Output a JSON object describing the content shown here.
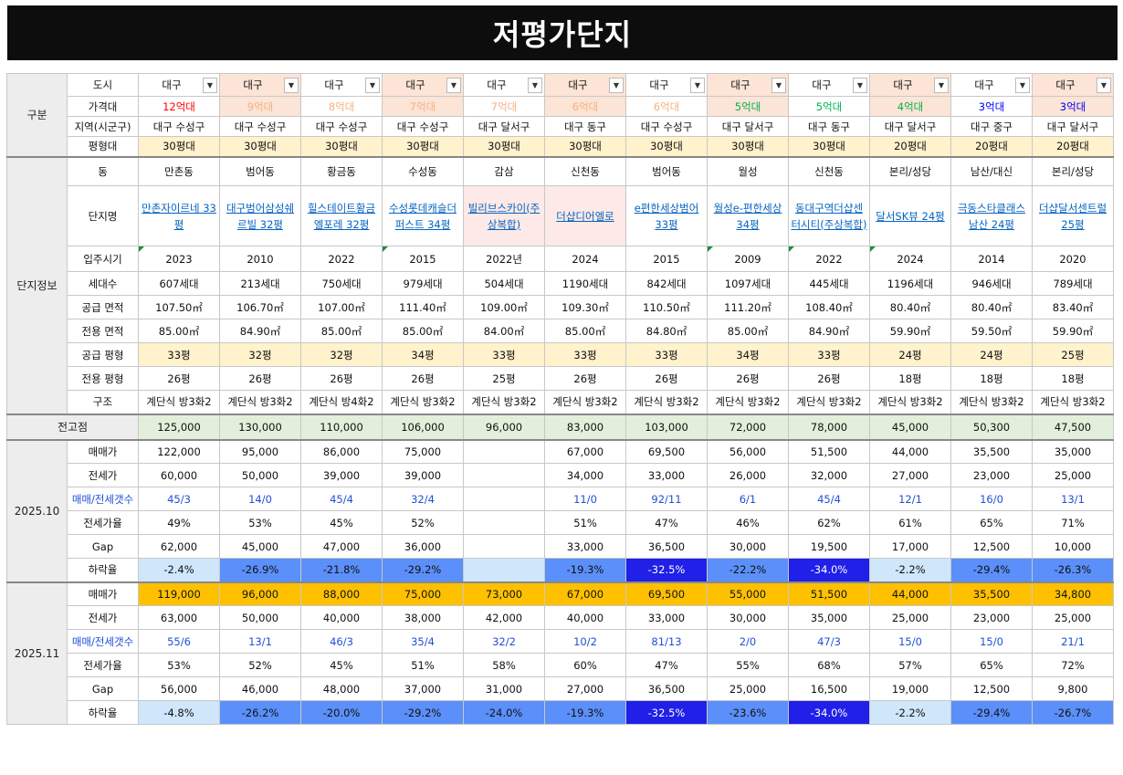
{
  "title": "저평가단지",
  "sections": {
    "gubun": "구분",
    "danji": "단지정보",
    "jeongojeom": "전고점",
    "oct": "2025.10",
    "nov": "2025.11"
  },
  "labels": {
    "city": "도시",
    "price_band": "가격대",
    "region": "지역(시군구)",
    "size_band": "평형대",
    "dong": "동",
    "name": "단지명",
    "year": "입주시기",
    "households": "세대수",
    "supply_area": "공급 면적",
    "exclusive_area": "전용 면적",
    "supply_pyeong": "공급 평형",
    "exclusive_pyeong": "전용 평형",
    "structure": "구조",
    "sale": "매매가",
    "jeonse": "전세가",
    "counts": "매매/전세갯수",
    "jeonse_ratio": "전세가율",
    "gap": "Gap",
    "drop": "하락율"
  },
  "columns": [
    {
      "city": "대구",
      "price_band": "12억대",
      "region": "대구 수성구",
      "size_band": "30평대",
      "dong": "만촌동",
      "name": "만촌자이르네 33평",
      "year": "2023",
      "households": "607세대",
      "supply_area": "107.50㎡",
      "exclusive_area": "85.00㎡",
      "supply_pyeong": "33평",
      "exclusive_pyeong": "26평",
      "structure": "계단식 방3화2",
      "peak": "125,000",
      "oct": {
        "sale": "122,000",
        "jeonse": "60,000",
        "counts": "45/3",
        "ratio": "49%",
        "gap": "62,000",
        "drop": "-2.4%"
      },
      "nov": {
        "sale": "119,000",
        "jeonse": "63,000",
        "counts": "55/6",
        "ratio": "53%",
        "gap": "56,000",
        "drop": "-4.8%"
      }
    },
    {
      "city": "대구",
      "price_band": "9억대",
      "region": "대구 수성구",
      "size_band": "30평대",
      "dong": "범어동",
      "name": "대구범어삼성쉐르빌 32평",
      "year": "2010",
      "households": "213세대",
      "supply_area": "106.70㎡",
      "exclusive_area": "84.90㎡",
      "supply_pyeong": "32평",
      "exclusive_pyeong": "26평",
      "structure": "계단식 방3화2",
      "peak": "130,000",
      "oct": {
        "sale": "95,000",
        "jeonse": "50,000",
        "counts": "14/0",
        "ratio": "53%",
        "gap": "45,000",
        "drop": "-26.9%"
      },
      "nov": {
        "sale": "96,000",
        "jeonse": "50,000",
        "counts": "13/1",
        "ratio": "52%",
        "gap": "46,000",
        "drop": "-26.2%"
      }
    },
    {
      "city": "대구",
      "price_band": "8억대",
      "region": "대구 수성구",
      "size_band": "30평대",
      "dong": "황금동",
      "name": "힐스테이트황금엘포레 32평",
      "year": "2022",
      "households": "750세대",
      "supply_area": "107.00㎡",
      "exclusive_area": "85.00㎡",
      "supply_pyeong": "32평",
      "exclusive_pyeong": "26평",
      "structure": "계단식 방4화2",
      "peak": "110,000",
      "oct": {
        "sale": "86,000",
        "jeonse": "39,000",
        "counts": "45/4",
        "ratio": "45%",
        "gap": "47,000",
        "drop": "-21.8%"
      },
      "nov": {
        "sale": "88,000",
        "jeonse": "40,000",
        "counts": "46/3",
        "ratio": "45%",
        "gap": "48,000",
        "drop": "-20.0%"
      }
    },
    {
      "city": "대구",
      "price_band": "7억대",
      "region": "대구 수성구",
      "size_band": "30평대",
      "dong": "수성동",
      "name": "수성롯데캐슬더퍼스트 34평",
      "year": "2015",
      "households": "979세대",
      "supply_area": "111.40㎡",
      "exclusive_area": "85.00㎡",
      "supply_pyeong": "34평",
      "exclusive_pyeong": "26평",
      "structure": "계단식 방3화2",
      "peak": "106,000",
      "oct": {
        "sale": "75,000",
        "jeonse": "39,000",
        "counts": "32/4",
        "ratio": "52%",
        "gap": "36,000",
        "drop": "-29.2%"
      },
      "nov": {
        "sale": "75,000",
        "jeonse": "38,000",
        "counts": "35/4",
        "ratio": "51%",
        "gap": "37,000",
        "drop": "-29.2%"
      }
    },
    {
      "city": "대구",
      "price_band": "7억대",
      "region": "대구 달서구",
      "size_band": "30평대",
      "dong": "감삼",
      "name": "빌리브스카이(주상복합)",
      "year": "2022년",
      "households": "504세대",
      "supply_area": "109.00㎡",
      "exclusive_area": "84.00㎡",
      "supply_pyeong": "33평",
      "exclusive_pyeong": "25평",
      "structure": "계단식 방3화2",
      "peak": "96,000",
      "oct": {
        "sale": "",
        "jeonse": "",
        "counts": "",
        "ratio": "",
        "gap": "",
        "drop": ""
      },
      "nov": {
        "sale": "73,000",
        "jeonse": "42,000",
        "counts": "32/2",
        "ratio": "58%",
        "gap": "31,000",
        "drop": "-24.0%"
      }
    },
    {
      "city": "대구",
      "price_band": "6억대",
      "region": "대구 동구",
      "size_band": "30평대",
      "dong": "신천동",
      "name": "더샵디어엘로",
      "year": "2024",
      "households": "1190세대",
      "supply_area": "109.30㎡",
      "exclusive_area": "85.00㎡",
      "supply_pyeong": "33평",
      "exclusive_pyeong": "26평",
      "structure": "계단식 방3화2",
      "peak": "83,000",
      "oct": {
        "sale": "67,000",
        "jeonse": "34,000",
        "counts": "11/0",
        "ratio": "51%",
        "gap": "33,000",
        "drop": "-19.3%"
      },
      "nov": {
        "sale": "67,000",
        "jeonse": "40,000",
        "counts": "10/2",
        "ratio": "60%",
        "gap": "27,000",
        "drop": "-19.3%"
      }
    },
    {
      "city": "대구",
      "price_band": "6억대",
      "region": "대구 수성구",
      "size_band": "30평대",
      "dong": "범어동",
      "name": "e편한세상범어 33평",
      "year": "2015",
      "households": "842세대",
      "supply_area": "110.50㎡",
      "exclusive_area": "84.80㎡",
      "supply_pyeong": "33평",
      "exclusive_pyeong": "26평",
      "structure": "계단식 방3화2",
      "peak": "103,000",
      "oct": {
        "sale": "69,500",
        "jeonse": "33,000",
        "counts": "92/11",
        "ratio": "47%",
        "gap": "36,500",
        "drop": "-32.5%"
      },
      "nov": {
        "sale": "69,500",
        "jeonse": "33,000",
        "counts": "81/13",
        "ratio": "47%",
        "gap": "36,500",
        "drop": "-32.5%"
      }
    },
    {
      "city": "대구",
      "price_band": "5억대",
      "region": "대구 달서구",
      "size_band": "30평대",
      "dong": "월성",
      "name": "월성e-편한세상 34평",
      "year": "2009",
      "households": "1097세대",
      "supply_area": "111.20㎡",
      "exclusive_area": "85.00㎡",
      "supply_pyeong": "34평",
      "exclusive_pyeong": "26평",
      "structure": "계단식 방3화2",
      "peak": "72,000",
      "oct": {
        "sale": "56,000",
        "jeonse": "26,000",
        "counts": "6/1",
        "ratio": "46%",
        "gap": "30,000",
        "drop": "-22.2%"
      },
      "nov": {
        "sale": "55,000",
        "jeonse": "30,000",
        "counts": "2/0",
        "ratio": "55%",
        "gap": "25,000",
        "drop": "-23.6%"
      }
    },
    {
      "city": "대구",
      "price_band": "5억대",
      "region": "대구 동구",
      "size_band": "30평대",
      "dong": "신천동",
      "name": "동대구역더샵센터시티(주상복합)",
      "year": "2022",
      "households": "445세대",
      "supply_area": "108.40㎡",
      "exclusive_area": "84.90㎡",
      "supply_pyeong": "33평",
      "exclusive_pyeong": "26평",
      "structure": "계단식 방3화2",
      "peak": "78,000",
      "oct": {
        "sale": "51,500",
        "jeonse": "32,000",
        "counts": "45/4",
        "ratio": "62%",
        "gap": "19,500",
        "drop": "-34.0%"
      },
      "nov": {
        "sale": "51,500",
        "jeonse": "35,000",
        "counts": "47/3",
        "ratio": "68%",
        "gap": "16,500",
        "drop": "-34.0%"
      }
    },
    {
      "city": "대구",
      "price_band": "4억대",
      "region": "대구 달서구",
      "size_band": "20평대",
      "dong": "본리/성당",
      "name": "달서SK뷰 24평",
      "year": "2024",
      "households": "1196세대",
      "supply_area": "80.40㎡",
      "exclusive_area": "59.90㎡",
      "supply_pyeong": "24평",
      "exclusive_pyeong": "18평",
      "structure": "계단식 방3화2",
      "peak": "45,000",
      "oct": {
        "sale": "44,000",
        "jeonse": "27,000",
        "counts": "12/1",
        "ratio": "61%",
        "gap": "17,000",
        "drop": "-2.2%"
      },
      "nov": {
        "sale": "44,000",
        "jeonse": "25,000",
        "counts": "15/0",
        "ratio": "57%",
        "gap": "19,000",
        "drop": "-2.2%"
      }
    },
    {
      "city": "대구",
      "price_band": "3억대",
      "region": "대구 중구",
      "size_band": "20평대",
      "dong": "남산/대신",
      "name": "극동스타클래스남산 24평",
      "year": "2014",
      "households": "946세대",
      "supply_area": "80.40㎡",
      "exclusive_area": "59.50㎡",
      "supply_pyeong": "24평",
      "exclusive_pyeong": "18평",
      "structure": "계단식 방3화2",
      "peak": "50,300",
      "oct": {
        "sale": "35,500",
        "jeonse": "23,000",
        "counts": "16/0",
        "ratio": "65%",
        "gap": "12,500",
        "drop": "-29.4%"
      },
      "nov": {
        "sale": "35,500",
        "jeonse": "23,000",
        "counts": "15/0",
        "ratio": "65%",
        "gap": "12,500",
        "drop": "-29.4%"
      }
    },
    {
      "city": "대구",
      "price_band": "3억대",
      "region": "대구 달서구",
      "size_band": "20평대",
      "dong": "본리/성당",
      "name": "더샵달서센트럴 25평",
      "year": "2020",
      "households": "789세대",
      "supply_area": "83.40㎡",
      "exclusive_area": "59.90㎡",
      "supply_pyeong": "25평",
      "exclusive_pyeong": "18평",
      "structure": "계단식 방3화2",
      "peak": "47,500",
      "oct": {
        "sale": "35,000",
        "jeonse": "25,000",
        "counts": "13/1",
        "ratio": "71%",
        "gap": "10,000",
        "drop": "-26.3%"
      },
      "nov": {
        "sale": "34,800",
        "jeonse": "25,000",
        "counts": "21/1",
        "ratio": "72%",
        "gap": "9,800",
        "drop": "-26.7%"
      }
    }
  ],
  "colors": {
    "title_bg": "#0d0d0d",
    "yellow_fill": "#fff2cc",
    "peach_fill": "#fce4d6",
    "green_fill": "#e2efda",
    "orange_fill": "#ffc000",
    "price_12": "#ff0000",
    "price_9_6": "#f4b183",
    "price_5_4": "#00b050",
    "price_3": "#0000ff",
    "drop_light": "#cfe6fb",
    "drop_mid": "#5b8ff9",
    "drop_strong": "#2020e8"
  },
  "icons": {
    "dropdown": "dropdown-arrow-icon"
  }
}
